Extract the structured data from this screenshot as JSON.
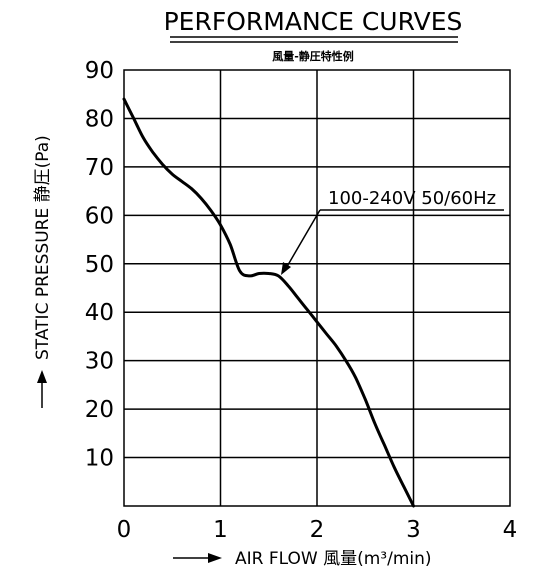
{
  "chart_data": {
    "type": "line",
    "title": "PERFORMANCE CURVES",
    "subtitle": "風量-静圧特性例",
    "xlabel": "AIR FLOW 風量(m³/min)",
    "ylabel": "STATIC PRESSURE 静圧(Pa)",
    "xlim": [
      0,
      4
    ],
    "ylim": [
      0,
      90
    ],
    "x_ticks": [
      "0",
      "1",
      "2",
      "3",
      "4"
    ],
    "y_ticks": [
      "10",
      "20",
      "30",
      "40",
      "50",
      "60",
      "70",
      "80",
      "90"
    ],
    "grid": true,
    "annotation": "100-240V 50/60Hz",
    "series": [
      {
        "name": "100-240V 50/60Hz",
        "x": [
          0,
          0.1,
          0.2,
          0.3,
          0.4,
          0.5,
          0.6,
          0.7,
          0.8,
          0.9,
          1.0,
          1.1,
          1.2,
          1.3,
          1.4,
          1.5,
          1.6,
          1.7,
          1.8,
          1.9,
          2.0,
          2.1,
          2.2,
          2.3,
          2.4,
          2.5,
          2.6,
          2.7,
          2.8,
          2.9,
          3.0
        ],
        "y": [
          84,
          80,
          76,
          73,
          70.5,
          68.5,
          67,
          65.5,
          63.5,
          61,
          58,
          54,
          48.5,
          47.5,
          48,
          48,
          47.5,
          45.5,
          43,
          40.5,
          38,
          35.5,
          33,
          30,
          26.5,
          22,
          17,
          12.5,
          8,
          4,
          0
        ]
      }
    ]
  }
}
